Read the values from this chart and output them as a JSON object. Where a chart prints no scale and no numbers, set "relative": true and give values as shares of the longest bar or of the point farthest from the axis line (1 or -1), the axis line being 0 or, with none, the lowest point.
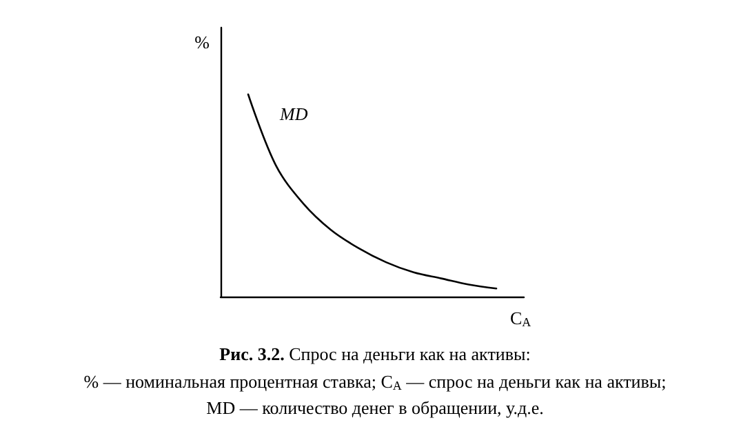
{
  "chart_data": {
    "type": "line",
    "relative": true,
    "title": "Рис. 3.2.",
    "subtitle": "Спрос на деньги как на активы:",
    "xlabel": "C$_{A}$",
    "ylabel": "%",
    "annotations": [
      "% — номинальная процентная ставка; C$_{A}$ — спрос на деньги как на активы;",
      "MD — количество денег в обращении, у.д.е."
    ],
    "categories": [
      null,
      null,
      null,
      null,
      null,
      null,
      null,
      null,
      null,
      null,
      null,
      null
    ],
    "series": [
      {
        "name": "MD",
        "color": "#000000",
        "values": [
          null,
          1,
          0.65,
          0.46,
          0.33,
          0.24,
          0.17,
          0.12,
          0.09,
          0.06,
          0.04,
          null
        ]
      }
    ],
    "grid": false,
    "legend": false,
    "marker": "none"
  }
}
